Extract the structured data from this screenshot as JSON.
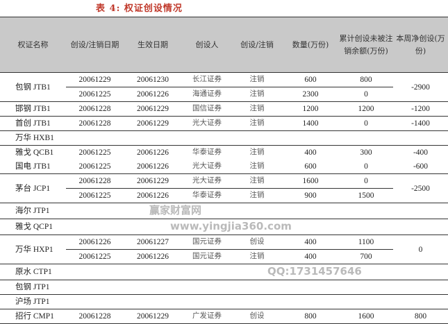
{
  "title": "表 4:  权证创设情况",
  "headers": [
    "权证名称",
    "创设/注销日期",
    "生效日期",
    "创设人",
    "创设/注销",
    "数量(万份)",
    "累计创设未被注销余额(万份)",
    "本周净创设(万份)"
  ],
  "groups": [
    {
      "name": "包钢 JTB1",
      "net": "-2900",
      "rows": [
        [
          "20061229",
          "20061230",
          "长江证券",
          "注销",
          "600",
          "800"
        ],
        [
          "20061225",
          "20061226",
          "海通证券",
          "注销",
          "2300",
          "0"
        ]
      ]
    },
    {
      "name": "邯钢 JTB1",
      "net": "-1200",
      "rows": [
        [
          "20061228",
          "20061229",
          "国信证券",
          "注销",
          "1200",
          "1200"
        ]
      ]
    },
    {
      "name": "首创 JTB1",
      "net": "-1400",
      "rows": [
        [
          "20061228",
          "20061229",
          "光大证券",
          "注销",
          "1400",
          "0"
        ]
      ]
    },
    {
      "name": "万华 HXB1",
      "net": "",
      "rows": []
    },
    {
      "name": "雅戈 QCB1",
      "net": "-400",
      "rows": [
        [
          "20061225",
          "20061226",
          "华泰证券",
          "注销",
          "400",
          "300"
        ]
      ],
      "noline_after": true
    },
    {
      "name": "国电 JTB1",
      "net": "-600",
      "rows": [
        [
          "20061225",
          "20061226",
          "光大证券",
          "注销",
          "600",
          "0"
        ]
      ],
      "noline_before": true
    },
    {
      "name": "茅台 JCP1",
      "net": "-2500",
      "rows": [
        [
          "20061228",
          "20061229",
          "光大证券",
          "注销",
          "1600",
          "0"
        ],
        [
          "20061225",
          "20061226",
          "华泰证券",
          "注销",
          "900",
          "1500"
        ]
      ]
    },
    {
      "name": "海尔 JTP1",
      "net": "",
      "rows": []
    },
    {
      "name": "雅戈 QCP1",
      "net": "",
      "rows": []
    },
    {
      "name": "万华 HXP1",
      "net": "0",
      "rows": [
        [
          "20061226",
          "20061227",
          "国元证券",
          "创设",
          "400",
          "1100"
        ],
        [
          "20061225",
          "20061226",
          "国元证券",
          "注销",
          "400",
          "700"
        ]
      ]
    },
    {
      "name": "原水 CTP1",
      "net": "",
      "rows": []
    },
    {
      "name": "包钢 JTP1",
      "net": "",
      "rows": []
    },
    {
      "name": "沪场 JTP1",
      "net": "",
      "rows": []
    },
    {
      "name": "招行 CMP1",
      "net": "800",
      "rows": [
        [
          "20061228",
          "20061229",
          "广发证券",
          "创设",
          "800",
          "1600"
        ]
      ]
    }
  ],
  "watermarks": [
    "赢家财富网",
    "www.yingjia360.com",
    "QQ:1731457646"
  ]
}
